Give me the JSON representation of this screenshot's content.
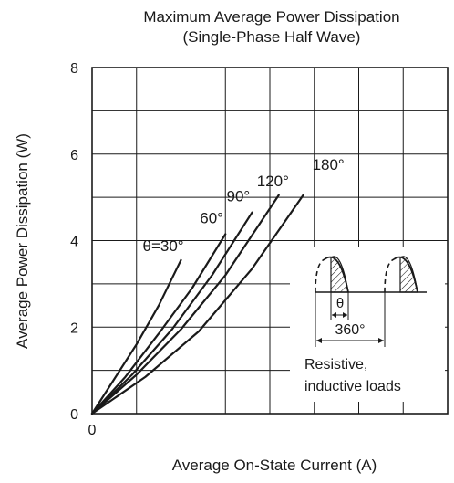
{
  "chart_data": {
    "type": "line",
    "title": "Maximum Average Power Dissipation",
    "subtitle": "(Single-Phase Half Wave)",
    "xlabel": "Average On-State Current  (A)",
    "ylabel": "Average Power Dissipation  (W)",
    "xlim": [
      0,
      8
    ],
    "ylim": [
      0,
      8
    ],
    "x_ticks": [
      "0"
    ],
    "y_ticks": [
      "0",
      "2",
      "4",
      "6",
      "8"
    ],
    "grid": true,
    "series": [
      {
        "name": "θ=30°",
        "x": [
          0,
          0.5,
          1.0,
          1.5,
          2.0
        ],
        "y": [
          0,
          0.8,
          1.6,
          2.5,
          3.55
        ]
      },
      {
        "name": "60°",
        "x": [
          0,
          0.75,
          1.5,
          2.25,
          3.0
        ],
        "y": [
          0,
          0.85,
          1.85,
          2.9,
          4.15
        ]
      },
      {
        "name": "90°",
        "x": [
          0,
          0.9,
          1.8,
          2.7,
          3.6
        ],
        "y": [
          0,
          0.9,
          1.95,
          3.2,
          4.65
        ]
      },
      {
        "name": "120°",
        "x": [
          0,
          1.0,
          2.0,
          3.0,
          4.2
        ],
        "y": [
          0,
          0.9,
          1.95,
          3.2,
          5.05
        ]
      },
      {
        "name": "180°",
        "x": [
          0,
          1.2,
          2.4,
          3.6,
          4.75
        ],
        "y": [
          0,
          0.85,
          1.9,
          3.35,
          5.05
        ]
      }
    ],
    "inset": {
      "theta_label": "θ",
      "period_label": "360°",
      "caption_line1": "Resistive,",
      "caption_line2": "inductive loads"
    }
  }
}
